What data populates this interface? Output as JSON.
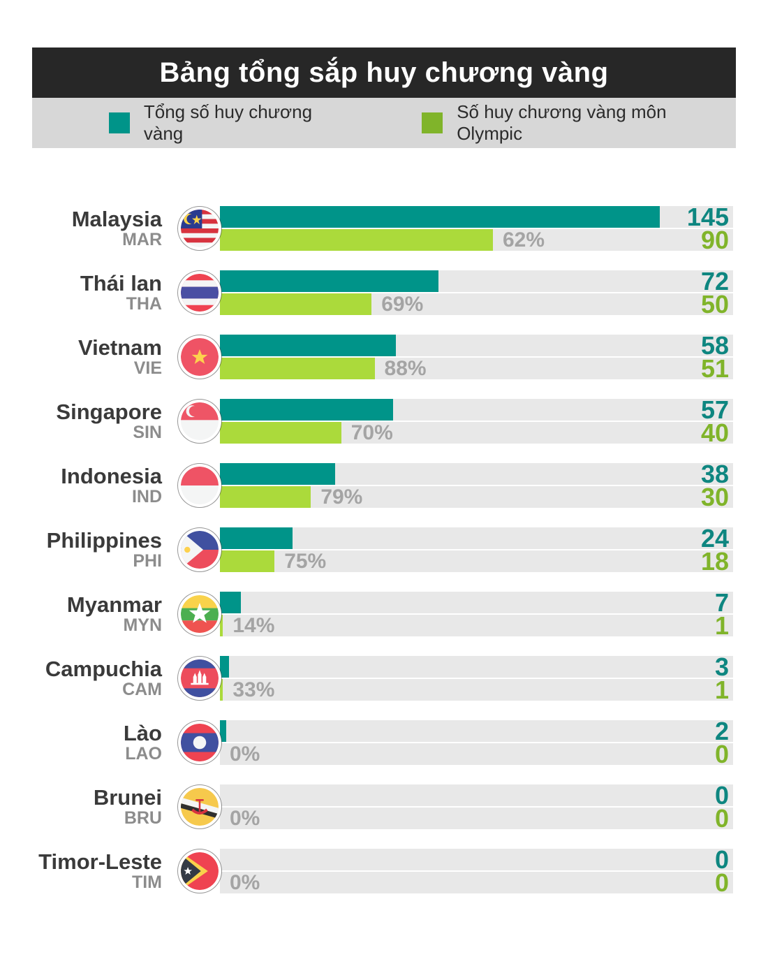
{
  "title": "Bảng tổng sắp huy chương vàng",
  "legend": {
    "total_label": "Tổng số huy chương vàng",
    "olympic_label": "Số huy chương vàng môn Olympic"
  },
  "colors": {
    "teal_bar": "#009489",
    "teal_text": "#0e8680",
    "green_bar": "#abda3b",
    "green_text": "#80b42a",
    "title_bg": "#272727",
    "legend_bg": "#d7d7d7",
    "track_bg": "#e8e8e8",
    "percent_text": "#a4a4a4"
  },
  "rows": [
    {
      "name": "Malaysia",
      "code": "MAR",
      "total": 145,
      "olympic": 90,
      "percent": "62%"
    },
    {
      "name": "Thái lan",
      "code": "THA",
      "total": 72,
      "olympic": 50,
      "percent": "69%"
    },
    {
      "name": "Vietnam",
      "code": "VIE",
      "total": 58,
      "olympic": 51,
      "percent": "88%"
    },
    {
      "name": "Singapore",
      "code": "SIN",
      "total": 57,
      "olympic": 40,
      "percent": "70%"
    },
    {
      "name": "Indonesia",
      "code": "IND",
      "total": 38,
      "olympic": 30,
      "percent": "79%"
    },
    {
      "name": "Philippines",
      "code": "PHI",
      "total": 24,
      "olympic": 18,
      "percent": "75%"
    },
    {
      "name": "Myanmar",
      "code": "MYN",
      "total": 7,
      "olympic": 1,
      "percent": "14%"
    },
    {
      "name": "Campuchia",
      "code": "CAM",
      "total": 3,
      "olympic": 1,
      "percent": "33%"
    },
    {
      "name": "Lào",
      "code": "LAO",
      "total": 2,
      "olympic": 0,
      "percent": "0%"
    },
    {
      "name": "Brunei",
      "code": "BRU",
      "total": 0,
      "olympic": 0,
      "percent": "0%"
    },
    {
      "name": "Timor-Leste",
      "code": "TIM",
      "total": 0,
      "olympic": 0,
      "percent": "0%"
    }
  ],
  "chart_data": {
    "type": "bar",
    "orientation": "horizontal",
    "title": "Bảng tổng sắp huy chương vàng",
    "categories": [
      "Malaysia",
      "Thái lan",
      "Vietnam",
      "Singapore",
      "Indonesia",
      "Philippines",
      "Myanmar",
      "Campuchia",
      "Lào",
      "Brunei",
      "Timor-Leste"
    ],
    "category_codes": [
      "MAR",
      "THA",
      "VIE",
      "SIN",
      "IND",
      "PHI",
      "MYN",
      "CAM",
      "LAO",
      "BRU",
      "TIM"
    ],
    "series": [
      {
        "name": "Tổng số huy chương vàng",
        "color": "#009489",
        "values": [
          145,
          72,
          58,
          57,
          38,
          24,
          7,
          3,
          2,
          0,
          0
        ]
      },
      {
        "name": "Số huy chương vàng môn Olympic",
        "color": "#abda3b",
        "values": [
          90,
          50,
          51,
          40,
          30,
          18,
          1,
          1,
          0,
          0,
          0
        ]
      }
    ],
    "percent_labels": [
      "62%",
      "69%",
      "88%",
      "70%",
      "79%",
      "75%",
      "14%",
      "33%",
      "0%",
      "0%",
      "0%"
    ],
    "xlim": [
      0,
      169
    ],
    "grid": false,
    "legend_position": "top"
  }
}
